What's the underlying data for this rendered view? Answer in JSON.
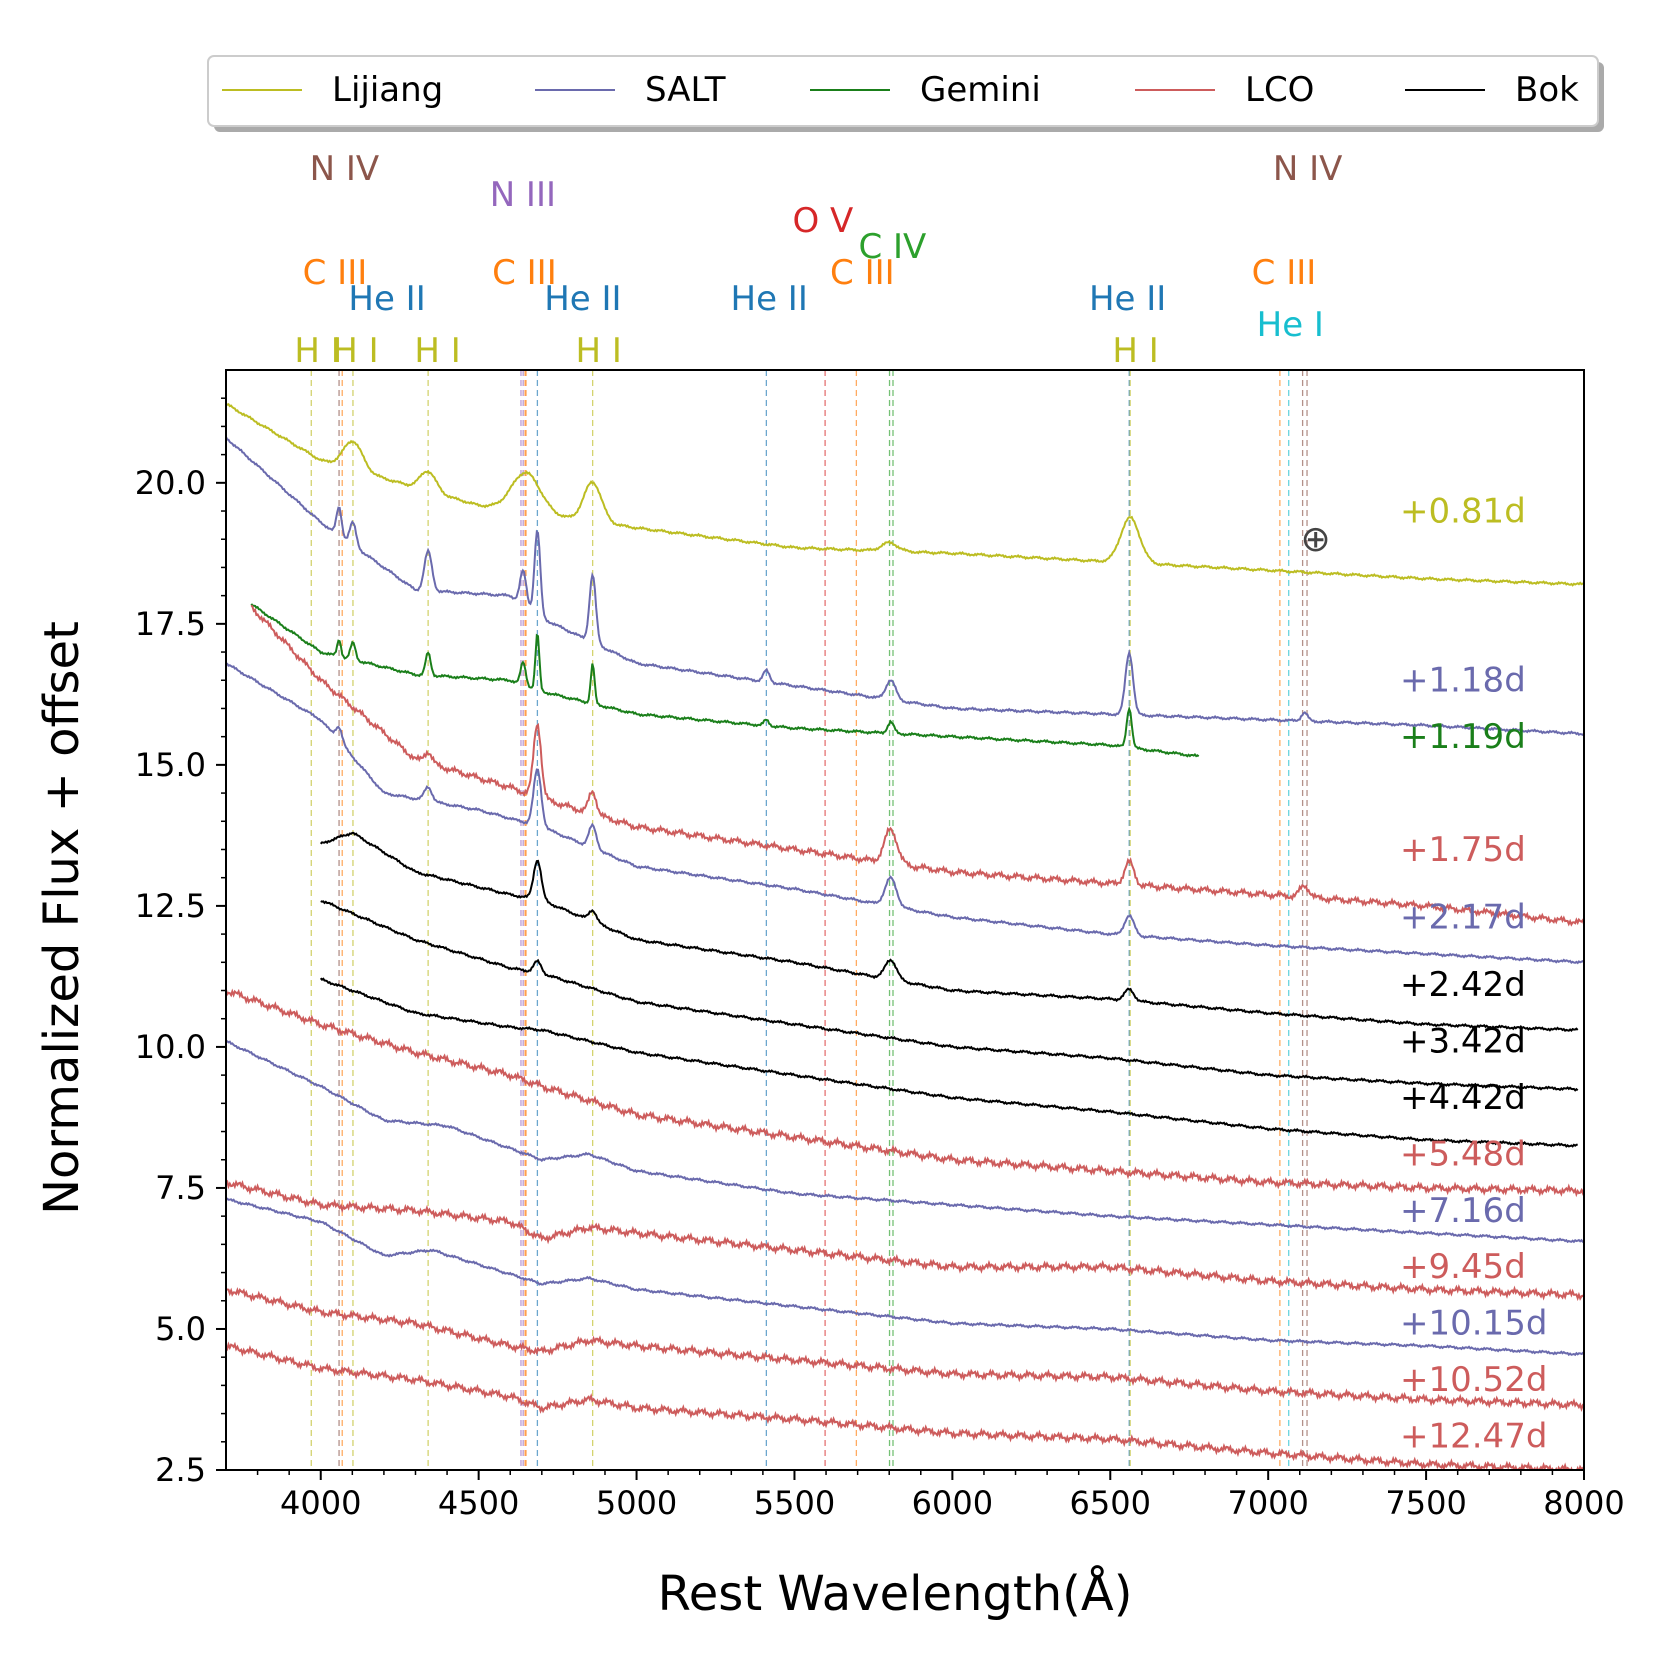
{
  "chart_data": {
    "type": "line",
    "title": "",
    "xlabel": "Rest Wavelength(Å)",
    "ylabel": "Normalized Flux + offset",
    "xlim": [
      3700,
      8000
    ],
    "ylim": [
      2.5,
      22.0
    ],
    "xticks": [
      4000,
      4500,
      5000,
      5500,
      6000,
      6500,
      7000,
      7500,
      8000
    ],
    "yticks": [
      2.5,
      5.0,
      7.5,
      10.0,
      12.5,
      15.0,
      17.5,
      20.0
    ],
    "legend": {
      "placement": "top",
      "entries": [
        {
          "name": "Lijiang",
          "color": "#bcbd22"
        },
        {
          "name": "SALT",
          "color": "#6a6aad"
        },
        {
          "name": "Gemini",
          "color": "#1a7f1a"
        },
        {
          "name": "LCO",
          "color": "#cd5c5c"
        },
        {
          "name": "Bok",
          "color": "#000000"
        }
      ]
    },
    "earth_symbol": {
      "label": "⊕",
      "x": 7150,
      "y": 19.0
    },
    "line_groups": [
      {
        "label": "N IV",
        "color": "#8c564b",
        "label_x": 4075,
        "label_level": 0,
        "wavelengths": [
          4058
        ]
      },
      {
        "label": "N IV",
        "color": "#8c564b",
        "label_x": 7125,
        "label_level": 0,
        "wavelengths": [
          7109,
          7123
        ]
      },
      {
        "label": "N III",
        "color": "#9467bd",
        "label_x": 4640,
        "label_level": 1,
        "wavelengths": [
          4634,
          4641
        ]
      },
      {
        "label": "O V",
        "color": "#d62728",
        "label_x": 5590,
        "label_level": 2,
        "wavelengths": [
          5597
        ]
      },
      {
        "label": "C IV",
        "color": "#2ca02c",
        "label_x": 5810,
        "label_level": 3,
        "wavelengths": [
          5801,
          5812
        ]
      },
      {
        "label": "C III",
        "color": "#ff7f0e",
        "label_x": 4045,
        "label_level": 4,
        "wavelengths": [
          4068
        ]
      },
      {
        "label": "C III",
        "color": "#ff7f0e",
        "label_x": 4645,
        "label_level": 4,
        "wavelengths": [
          4647,
          4650
        ]
      },
      {
        "label": "C III",
        "color": "#ff7f0e",
        "label_x": 5715,
        "label_level": 4,
        "wavelengths": [
          5696
        ]
      },
      {
        "label": "C III",
        "color": "#ff7f0e",
        "label_x": 7050,
        "label_level": 4,
        "wavelengths": [
          7037
        ]
      },
      {
        "label": "He II",
        "color": "#1f77b4",
        "label_x": 4210,
        "label_level": 5,
        "wavelengths": [
          4686
        ]
      },
      {
        "label": "He II",
        "color": "#1f77b4",
        "label_x": 4830,
        "label_level": 5,
        "wavelengths": [
          4686
        ]
      },
      {
        "label": "He II",
        "color": "#1f77b4",
        "label_x": 5420,
        "label_level": 5,
        "wavelengths": [
          5411
        ]
      },
      {
        "label": "He II",
        "color": "#1f77b4",
        "label_x": 6555,
        "label_level": 5,
        "wavelengths": [
          6560
        ]
      },
      {
        "label": "He I",
        "color": "#17becf",
        "label_x": 7070,
        "label_level": 6,
        "wavelengths": [
          7065
        ]
      },
      {
        "label": "H I",
        "color": "#bcbd22",
        "label_x": 3990,
        "label_level": 7,
        "wavelengths": [
          3970
        ]
      },
      {
        "label": "H I",
        "color": "#bcbd22",
        "label_x": 4110,
        "label_level": 7,
        "wavelengths": [
          4102
        ]
      },
      {
        "label": "H I",
        "color": "#bcbd22",
        "label_x": 4370,
        "label_level": 7,
        "wavelengths": [
          4340
        ]
      },
      {
        "label": "H I",
        "color": "#bcbd22",
        "label_x": 4880,
        "label_level": 7,
        "wavelengths": [
          4861
        ]
      },
      {
        "label": "H I",
        "color": "#bcbd22",
        "label_x": 6580,
        "label_level": 7,
        "wavelengths": [
          6563
        ]
      }
    ],
    "series": [
      {
        "name": "Lijiang",
        "phase": "+0.81d",
        "color": "#bcbd22",
        "label_y": 19.3,
        "x": [
          3700,
          4000,
          4500,
          5000,
          5500,
          6000,
          6500,
          7000,
          7500,
          8000
        ],
        "y": [
          21.4,
          20.4,
          19.6,
          19.2,
          18.85,
          18.75,
          18.6,
          18.45,
          18.3,
          18.2
        ],
        "features": [
          [
            4102,
            0.5,
            30
          ],
          [
            4340,
            0.35,
            25
          ],
          [
            4650,
            0.7,
            45
          ],
          [
            4861,
            0.7,
            28
          ],
          [
            5801,
            0.15,
            25
          ],
          [
            6563,
            0.8,
            30
          ]
        ]
      },
      {
        "name": "SALT",
        "phase": "+1.18d",
        "color": "#6a6aad",
        "label_y": 16.3,
        "x": [
          3700,
          4000,
          4300,
          4600,
          4700,
          5000,
          5500,
          6000,
          6500,
          7000,
          7500,
          8000
        ],
        "y": [
          20.8,
          19.3,
          18.1,
          18.0,
          17.6,
          16.8,
          16.4,
          16.0,
          15.9,
          15.8,
          15.7,
          15.55
        ],
        "features": [
          [
            4058,
            0.5,
            8
          ],
          [
            4102,
            0.4,
            10
          ],
          [
            4340,
            0.7,
            12
          ],
          [
            4641,
            0.6,
            10
          ],
          [
            4686,
            1.5,
            9
          ],
          [
            4861,
            1.2,
            10
          ],
          [
            5411,
            0.2,
            10
          ],
          [
            5805,
            0.35,
            15
          ],
          [
            6560,
            1.1,
            12
          ],
          [
            7115,
            0.15,
            10
          ]
        ]
      },
      {
        "name": "Gemini",
        "phase": "+1.19d",
        "color": "#1a7f1a",
        "label_y": 15.3,
        "x": [
          3780,
          4000,
          4300,
          4600,
          4700,
          5000,
          5500,
          6000,
          6500,
          6780
        ],
        "y": [
          17.85,
          17.0,
          16.6,
          16.5,
          16.3,
          15.9,
          15.65,
          15.5,
          15.35,
          15.15
        ],
        "features": [
          [
            4058,
            0.3,
            6
          ],
          [
            4102,
            0.3,
            8
          ],
          [
            4340,
            0.4,
            8
          ],
          [
            4641,
            0.4,
            8
          ],
          [
            4686,
            1.0,
            6
          ],
          [
            4861,
            0.7,
            6
          ],
          [
            5411,
            0.1,
            8
          ],
          [
            5805,
            0.2,
            10
          ],
          [
            6560,
            0.7,
            8
          ]
        ]
      },
      {
        "name": "LCO",
        "phase": "+1.75d",
        "color": "#cd5c5c",
        "label_y": 13.3,
        "x": [
          3780,
          4000,
          4300,
          4600,
          4700,
          5000,
          5500,
          6000,
          6500,
          7000,
          7500,
          8000
        ],
        "y": [
          17.8,
          16.5,
          15.1,
          14.6,
          14.4,
          13.9,
          13.5,
          13.1,
          12.9,
          12.7,
          12.5,
          12.2
        ],
        "features": [
          [
            4340,
            0.2,
            12
          ],
          [
            4686,
            1.3,
            12
          ],
          [
            4861,
            0.4,
            12
          ],
          [
            5805,
            0.6,
            20
          ],
          [
            6560,
            0.4,
            15
          ],
          [
            7115,
            0.2,
            15
          ]
        ],
        "noise": 0.06
      },
      {
        "name": "SALT",
        "phase": "+2.17d",
        "color": "#6a6aad",
        "label_y": 12.1,
        "x": [
          3700,
          4000,
          4200,
          4500,
          4700,
          5000,
          5500,
          6000,
          6500,
          7000,
          7500,
          8000
        ],
        "y": [
          16.8,
          15.8,
          14.5,
          14.2,
          13.9,
          13.2,
          12.8,
          12.3,
          12.0,
          11.8,
          11.65,
          11.5
        ],
        "features": [
          [
            4058,
            0.25,
            10
          ],
          [
            4340,
            0.25,
            12
          ],
          [
            4686,
            1.0,
            12
          ],
          [
            4861,
            0.4,
            12
          ],
          [
            5805,
            0.5,
            18
          ],
          [
            6560,
            0.35,
            15
          ]
        ]
      },
      {
        "name": "Bok",
        "phase": "+2.42d",
        "color": "#000000",
        "label_y": 10.9,
        "x": [
          4000,
          4100,
          4300,
          4600,
          4700,
          5000,
          5500,
          6000,
          6500,
          7000,
          7500,
          7980
        ],
        "y": [
          13.6,
          13.8,
          13.1,
          12.7,
          12.6,
          11.9,
          11.5,
          11.0,
          10.85,
          10.6,
          10.4,
          10.3
        ],
        "features": [
          [
            4686,
            0.7,
            12
          ],
          [
            4861,
            0.2,
            12
          ],
          [
            5805,
            0.35,
            18
          ],
          [
            6560,
            0.2,
            15
          ]
        ]
      },
      {
        "name": "Bok",
        "phase": "+3.42d",
        "color": "#000000",
        "label_y": 9.9,
        "x": [
          4000,
          4300,
          4600,
          4700,
          5000,
          5500,
          6000,
          6500,
          7000,
          7500,
          7980
        ],
        "y": [
          12.6,
          11.9,
          11.4,
          11.3,
          10.8,
          10.4,
          10.0,
          9.8,
          9.5,
          9.35,
          9.25
        ],
        "features": [
          [
            4686,
            0.2,
            12
          ]
        ]
      },
      {
        "name": "Bok",
        "phase": "+4.42d",
        "color": "#000000",
        "label_y": 8.9,
        "x": [
          4000,
          4300,
          4600,
          4700,
          5000,
          5500,
          6000,
          6500,
          7000,
          7500,
          7980
        ],
        "y": [
          11.2,
          10.6,
          10.35,
          10.3,
          9.9,
          9.5,
          9.1,
          8.85,
          8.55,
          8.35,
          8.25
        ],
        "features": []
      },
      {
        "name": "LCO",
        "phase": "+5.48d",
        "color": "#cd5c5c",
        "label_y": 7.9,
        "x": [
          3700,
          4000,
          4300,
          4600,
          4700,
          5000,
          5500,
          6000,
          6500,
          7000,
          7500,
          8000
        ],
        "y": [
          11.0,
          10.4,
          9.9,
          9.5,
          9.3,
          8.8,
          8.4,
          8.0,
          7.8,
          7.6,
          7.5,
          7.45
        ],
        "features": [],
        "noise": 0.07
      },
      {
        "name": "SALT",
        "phase": "+7.16d",
        "color": "#6a6aad",
        "label_y": 6.9,
        "x": [
          3700,
          4000,
          4200,
          4400,
          4700,
          4850,
          5000,
          5500,
          6000,
          6500,
          7000,
          7500,
          8000
        ],
        "y": [
          10.1,
          9.3,
          8.7,
          8.6,
          8.0,
          8.1,
          7.8,
          7.4,
          7.2,
          7.0,
          6.85,
          6.7,
          6.55
        ],
        "features": []
      },
      {
        "name": "LCO",
        "phase": "+9.45d",
        "color": "#cd5c5c",
        "label_y": 5.9,
        "x": [
          3700,
          4000,
          4300,
          4600,
          4700,
          4850,
          5000,
          5500,
          6000,
          6500,
          7000,
          7500,
          8000
        ],
        "y": [
          7.6,
          7.2,
          7.1,
          6.9,
          6.6,
          6.8,
          6.7,
          6.4,
          6.1,
          6.1,
          5.85,
          5.7,
          5.6
        ],
        "features": [],
        "noise": 0.07
      },
      {
        "name": "SALT",
        "phase": "+10.15d",
        "color": "#6a6aad",
        "label_y": 4.9,
        "x": [
          3700,
          4000,
          4200,
          4350,
          4700,
          4850,
          5000,
          5500,
          6000,
          6500,
          7000,
          7500,
          8000
        ],
        "y": [
          7.3,
          6.9,
          6.3,
          6.4,
          5.8,
          5.9,
          5.7,
          5.4,
          5.1,
          5.0,
          4.8,
          4.7,
          4.55
        ],
        "features": []
      },
      {
        "name": "LCO",
        "phase": "+10.52d",
        "color": "#cd5c5c",
        "label_y": 3.9,
        "x": [
          3700,
          4000,
          4300,
          4600,
          4700,
          4850,
          5000,
          5500,
          6000,
          6500,
          7000,
          7500,
          8000
        ],
        "y": [
          5.7,
          5.3,
          5.1,
          4.7,
          4.6,
          4.8,
          4.7,
          4.45,
          4.2,
          4.15,
          3.9,
          3.75,
          3.65
        ],
        "features": [],
        "noise": 0.07
      },
      {
        "name": "LCO",
        "phase": "+12.47d",
        "color": "#cd5c5c",
        "label_y": 2.9,
        "x": [
          3700,
          4000,
          4300,
          4600,
          4700,
          4850,
          5000,
          5500,
          6000,
          6500,
          7000,
          7500,
          8000
        ],
        "y": [
          4.7,
          4.3,
          4.1,
          3.8,
          3.6,
          3.75,
          3.6,
          3.4,
          3.15,
          3.05,
          2.8,
          2.6,
          2.5
        ],
        "features": [],
        "noise": 0.07
      }
    ]
  }
}
